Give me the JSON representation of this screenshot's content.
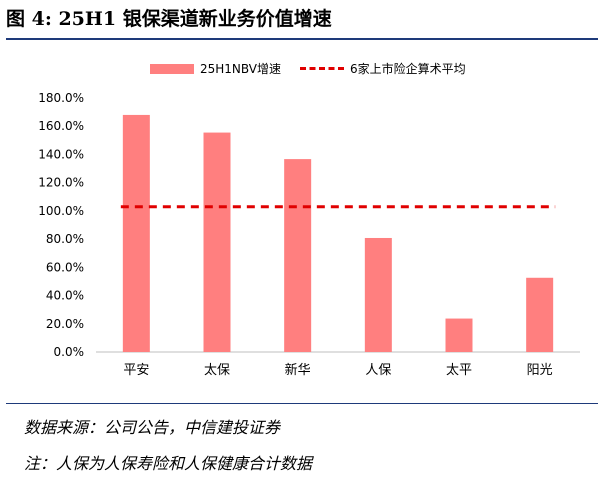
{
  "title": "图 4: 25H1 银保渠道新业务价值增速",
  "source": "数据来源：公司公告，中信建投证券",
  "note": "注：人保为人保寿险和人保健康合计数据",
  "colors": {
    "bar": "#ff7f7f",
    "line": "#e00000",
    "rule": "#1e3a7a",
    "axis": "#bfbfbf"
  },
  "chart_data": {
    "type": "bar",
    "categories": [
      "平安",
      "太保",
      "新华",
      "人保",
      "太平",
      "阳光"
    ],
    "series": [
      {
        "name": "25H1NBV增速",
        "type": "bar",
        "values": [
          168.0,
          155.5,
          136.7,
          80.8,
          23.7,
          52.6
        ]
      },
      {
        "name": "6家上市险企算术平均",
        "type": "line",
        "style": "dashed",
        "values": [
          102.9,
          102.9,
          102.9,
          102.9,
          102.9,
          102.9
        ]
      }
    ],
    "ylim": [
      0,
      180
    ],
    "yticks": [
      0,
      20,
      40,
      60,
      80,
      100,
      120,
      140,
      160,
      180
    ],
    "ytick_labels": [
      "0.0%",
      "20.0%",
      "40.0%",
      "60.0%",
      "80.0%",
      "100.0%",
      "120.0%",
      "140.0%",
      "160.0%",
      "180.0%"
    ],
    "legend_position": "top",
    "grid": false
  }
}
